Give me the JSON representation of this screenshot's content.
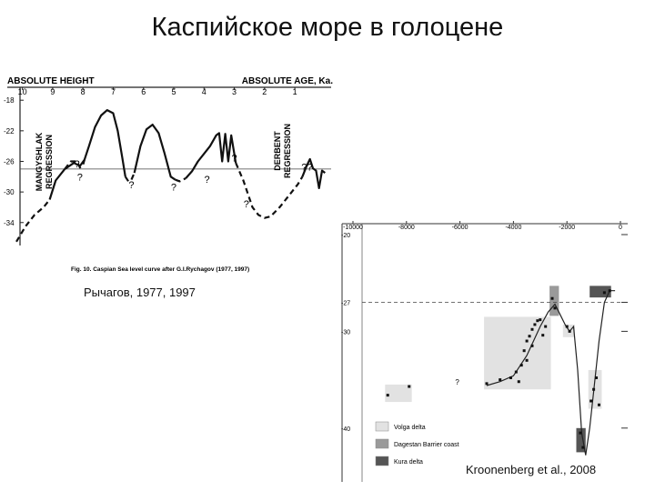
{
  "slide": {
    "title": "Каспийское море в голоцене",
    "caption_left": "Рычагов, 1977, 1997",
    "caption_right": "Kroonenberg et al., 2008"
  },
  "chart_data": [
    {
      "type": "line",
      "xlabel": "ABSOLUTE AGE, Ka.",
      "ylabel": "ABSOLUTE HEIGHT",
      "x_ticks": [
        10,
        9,
        8,
        7,
        6,
        5,
        4,
        3,
        2,
        1
      ],
      "y_ticks": [
        -18,
        -22,
        -26,
        -30,
        -34
      ],
      "xlim": [
        10.5,
        -0.2
      ],
      "ylim": [
        -37,
        -17.5
      ],
      "reference_level": -27,
      "annotations": [
        {
          "text": "MANGYSHLAK REGRESSION",
          "x": 9.6
        },
        {
          "text": "DERBENT REGRESSION",
          "x": 1.6
        },
        {
          "text": "?",
          "x": 8.2,
          "y": -26.8
        },
        {
          "text": "?",
          "x": 8.1,
          "y": -28.5
        },
        {
          "text": "?",
          "x": 6.4,
          "y": -29.5
        },
        {
          "text": "?",
          "x": 5.0,
          "y": -29.8
        },
        {
          "text": "?",
          "x": 3.9,
          "y": -28.8
        },
        {
          "text": "?",
          "x": 3.0,
          "y": -26
        },
        {
          "text": "?",
          "x": 2.6,
          "y": -32
        },
        {
          "text": "??",
          "x": 0.6,
          "y": -27.2
        }
      ],
      "caption": "Fig. 10. Caspian Sea level curve after G.I.Rychagov (1977, 1997)",
      "series": [
        {
          "style": "solid",
          "x": [
            9.1,
            8.9,
            8.6,
            8.3,
            8.1,
            7.95,
            7.8,
            7.6,
            7.4,
            7.2,
            7.0,
            6.85,
            6.7,
            6.6
          ],
          "y": [
            -31,
            -28.5,
            -27,
            -26.2,
            -26.6,
            -25.8,
            -24,
            -21.5,
            -20,
            -19.3,
            -19.7,
            -22,
            -25.5,
            -28
          ]
        },
        {
          "style": "solid",
          "x": [
            6.3,
            6.1,
            5.9,
            5.7,
            5.5,
            5.3,
            5.1,
            4.95
          ],
          "y": [
            -27.5,
            -24,
            -21.8,
            -21.2,
            -22.3,
            -25,
            -28,
            -28.4
          ]
        },
        {
          "style": "solid",
          "x": [
            4.6,
            4.4,
            4.2,
            4.0,
            3.8,
            3.6,
            3.5,
            3.4,
            3.3,
            3.2,
            3.1,
            2.95
          ],
          "y": [
            -28.2,
            -27.3,
            -26,
            -25,
            -24,
            -22.6,
            -22.3,
            -26,
            -22.4,
            -26,
            -22.6,
            -26.2
          ]
        },
        {
          "style": "solid",
          "x": [
            0.75,
            0.6,
            0.5,
            0.4,
            0.3,
            0.2,
            0.1,
            0.0
          ],
          "y": [
            -28,
            -26.5,
            -25.7,
            -26.9,
            -27.2,
            -29.5,
            -27.2,
            -27.5
          ]
        },
        {
          "style": "dashed",
          "x": [
            10.2,
            9.9,
            9.6,
            9.3,
            9.1
          ],
          "y": [
            -36.5,
            -34.5,
            -33,
            -32,
            -31
          ]
        },
        {
          "style": "dashed",
          "x": [
            8.6,
            8.4,
            8.2,
            8.1,
            8.0,
            7.95
          ],
          "y": [
            -27,
            -26,
            -26,
            -26.8,
            -26.5,
            -25.8
          ]
        },
        {
          "style": "dashed",
          "x": [
            6.6,
            6.5,
            6.4,
            6.3
          ],
          "y": [
            -28,
            -28.6,
            -28.4,
            -27.5
          ]
        },
        {
          "style": "dashed",
          "x": [
            4.95,
            4.8,
            4.6
          ],
          "y": [
            -28.4,
            -28.6,
            -28.2
          ]
        },
        {
          "style": "dashed",
          "x": [
            2.95,
            2.7,
            2.4,
            2.2,
            2.0,
            1.8,
            1.5,
            1.2,
            0.9,
            0.75
          ],
          "y": [
            -26.2,
            -28.5,
            -32,
            -33,
            -33.4,
            -33.2,
            -32,
            -30.5,
            -29,
            -28
          ]
        }
      ]
    },
    {
      "type": "scatter",
      "x_ticks": [
        -10000,
        -8000,
        -6000,
        -4000,
        -2000,
        0
      ],
      "y_ticks": [
        -20,
        -27,
        -30,
        -40
      ],
      "xlim": [
        -10000,
        0
      ],
      "ylim": [
        -45,
        -20
      ],
      "reference_level": -27,
      "annotations": [
        {
          "text": "?",
          "x": -6100,
          "y": -35.5
        }
      ],
      "legend_position": "bottom-left",
      "legend": [
        {
          "label": "Volga delta",
          "color": "#e2e2e2"
        },
        {
          "label": "Dagestan Barrier coast",
          "color": "#9a9a9a"
        },
        {
          "label": "Kura delta",
          "color": "#555555"
        }
      ],
      "shaded_boxes": [
        {
          "group": "Volga delta",
          "x": [
            -8800,
            -7800
          ],
          "y": [
            -35.5,
            -37.3
          ]
        },
        {
          "group": "Volga delta",
          "x": [
            -5100,
            -2600
          ],
          "y": [
            -28.5,
            -36
          ]
        },
        {
          "group": "Volga delta",
          "x": [
            -2150,
            -1700
          ],
          "y": [
            -29.3,
            -30.6
          ]
        },
        {
          "group": "Volga delta",
          "x": [
            -1200,
            -700
          ],
          "y": [
            -34,
            -38
          ]
        },
        {
          "group": "Dagestan Barrier coast",
          "x": [
            -2650,
            -2300
          ],
          "y": [
            -25.3,
            -28.4
          ]
        },
        {
          "group": "Kura delta",
          "x": [
            -1650,
            -1300
          ],
          "y": [
            -40,
            -42.5
          ]
        },
        {
          "group": "Kura delta",
          "x": [
            -1150,
            -350
          ],
          "y": [
            -25.3,
            -26.5
          ]
        }
      ],
      "series": [
        {
          "group": "Volga delta",
          "x": [
            -8700,
            -7900,
            -5000,
            -4500,
            -4100,
            -3900,
            -3700,
            -3600,
            -3500,
            -3400,
            -3300,
            -3200,
            -3100,
            -3000,
            -2900,
            -2800,
            -3800,
            -3500,
            -3300
          ],
          "y": [
            -36.6,
            -35.7,
            -35.4,
            -35,
            -34.8,
            -34.2,
            -33.5,
            -32,
            -31,
            -30.5,
            -29.8,
            -29.3,
            -28.9,
            -28.8,
            -30.4,
            -29.5,
            -35.2,
            -33,
            -31.5
          ]
        },
        {
          "group": "Dagestan Barrier coast",
          "x": [
            -2550,
            -2450,
            -2000,
            -1900
          ],
          "y": [
            -26.6,
            -27.6,
            -29.5,
            -30
          ]
        },
        {
          "group": "Kura delta",
          "x": [
            -1500,
            -1400,
            -1100,
            -1000,
            -900,
            -800,
            -600,
            -400
          ],
          "y": [
            -40.5,
            -42,
            -37.2,
            -36,
            -34.8,
            -37.6,
            -26,
            -25.8
          ]
        }
      ],
      "trend_x": [
        -5000,
        -4500,
        -4000,
        -3500,
        -3000,
        -2700,
        -2450,
        -2250,
        -2050,
        -1900,
        -1750,
        -1600,
        -1450,
        -1300,
        -1150,
        -1000,
        -800,
        -600,
        -400,
        -200
      ],
      "trend_y": [
        -35.6,
        -35.2,
        -34.6,
        -32.5,
        -29.5,
        -28,
        -27.2,
        -28.3,
        -29.4,
        -30,
        -29.5,
        -34,
        -40.5,
        -42.8,
        -40,
        -36.2,
        -31,
        -27,
        -25.8,
        -25.8
      ]
    }
  ]
}
